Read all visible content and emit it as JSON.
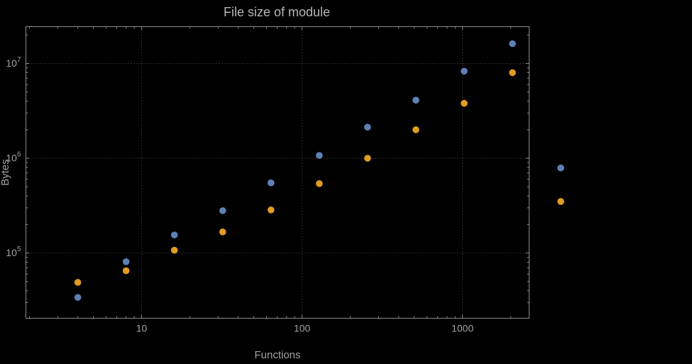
{
  "chart_data": {
    "type": "scatter",
    "title": "File size of module",
    "xlabel": "Functions",
    "ylabel": "Bytes",
    "x_scale": "log",
    "y_scale": "log",
    "xlim": [
      1.9,
      2600
    ],
    "ylim": [
      20500,
      24500000
    ],
    "grid": "dotted lines at major ticks, both axes",
    "legend": "none",
    "frame": true,
    "x_ticks": {
      "values": [
        10,
        100,
        1000
      ],
      "labels": [
        "10",
        "100",
        "1000"
      ]
    },
    "y_ticks": {
      "values": [
        100000,
        1000000,
        10000000
      ],
      "labels": [
        "10^5",
        "10^6",
        "10^7"
      ]
    },
    "marker": "filled-circle",
    "marker_diameter_px": 10,
    "series": [
      {
        "name": "series-1-blue",
        "color": "#5e81b5",
        "x": [
          4,
          8,
          16,
          32,
          64,
          128,
          256,
          512,
          1024,
          2048,
          4096
        ],
        "y": [
          34000,
          81000,
          155000,
          280000,
          550000,
          1070000,
          2130000,
          4100000,
          8300000,
          16200000,
          790000
        ]
      },
      {
        "name": "series-2-orange",
        "color": "#e19c24",
        "x": [
          4,
          8,
          16,
          32,
          64,
          128,
          256,
          512,
          1024,
          2048,
          4096
        ],
        "y": [
          49000,
          65000,
          107000,
          167000,
          285000,
          540000,
          1000000,
          2000000,
          3800000,
          8000000,
          350000
        ]
      }
    ],
    "colors": {
      "background": "#000000",
      "frame": "#8c8c8c",
      "grid": "#5c5c5c",
      "tick_text": "#a2a2a2",
      "title_text": "#b6b6b6"
    },
    "note": "last data points of both series are drawn outside the right edge of the plot frame"
  }
}
